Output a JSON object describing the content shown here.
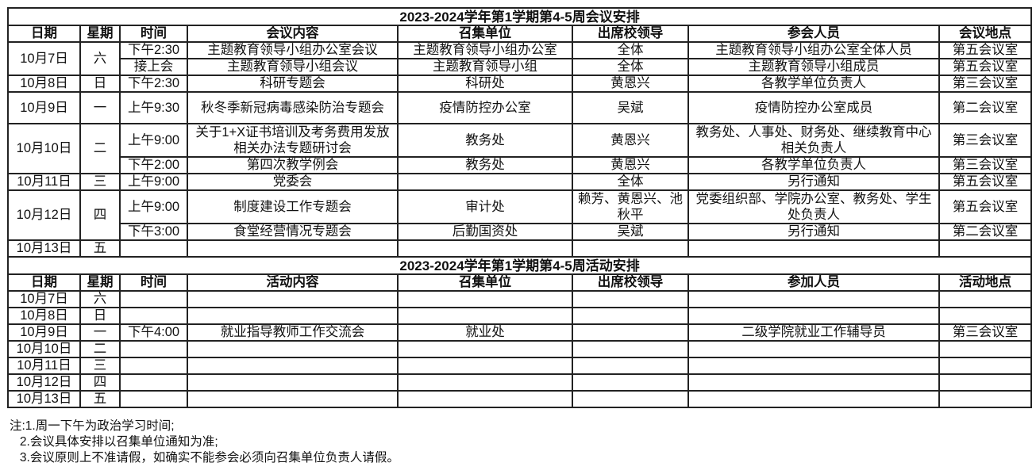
{
  "meetings": {
    "title": "2023-2024学年第1学期第4-5周会议安排",
    "headers": [
      "日期",
      "星期",
      "时间",
      "会议内容",
      "召集单位",
      "出席校领导",
      "参会人员",
      "会议地点"
    ],
    "days": [
      {
        "date": "10月7日",
        "weekday": "六",
        "sessions": [
          {
            "time": "下午2:30",
            "content": "主题教育领导小组办公室会议",
            "convener": "主题教育领导小组办公室",
            "leaders": "全体",
            "attendees": "主题教育领导小组办公室全体人员",
            "location": "第五会议室"
          },
          {
            "time": "接上会",
            "content": "主题教育领导小组会议",
            "convener": "主题教育领导小组",
            "leaders": "全体",
            "attendees": "主题教育领导小组成员",
            "location": "第五会议室"
          }
        ]
      },
      {
        "date": "10月8日",
        "weekday": "日",
        "sessions": [
          {
            "time": "下午2:30",
            "content": "科研专题会",
            "convener": "科研处",
            "leaders": "黄恩兴",
            "attendees": "各教学单位负责人",
            "location": "第三会议室"
          }
        ]
      },
      {
        "date": "10月9日",
        "weekday": "一",
        "tall": true,
        "sessions": [
          {
            "time": "上午9:30",
            "content": "秋冬季新冠病毒感染防治专题会",
            "convener": "疫情防控办公室",
            "leaders": "吴斌",
            "attendees": "疫情防控办公室成员",
            "location": "第二会议室",
            "tall": true
          }
        ]
      },
      {
        "date": "10月10日",
        "weekday": "二",
        "sessions": [
          {
            "time": "上午9:00",
            "content": "关于1+X证书培训及考务费用发放相关办法专题研讨会",
            "convener": "教务处",
            "leaders": "黄恩兴",
            "attendees": "教务处、人事处、财务处、继续教育中心相关负责人",
            "location": "第三会议室",
            "tall": true
          },
          {
            "time": "下午2:00",
            "content": "第四次教学例会",
            "convener": "教务处",
            "leaders": "黄恩兴",
            "attendees": "各教学单位负责人",
            "location": "第三会议室"
          }
        ]
      },
      {
        "date": "10月11日",
        "weekday": "三",
        "sessions": [
          {
            "time": "上午9:00",
            "content": "党委会",
            "convener": "",
            "leaders": "全体",
            "attendees": "另行通知",
            "location": "第五会议室"
          }
        ]
      },
      {
        "date": "10月12日",
        "weekday": "四",
        "sessions": [
          {
            "time": "上午9:00",
            "content": "制度建设工作专题会",
            "convener": "审计处",
            "leaders": "赖芳、黄恩兴、池秋平",
            "attendees": "党委组织部、学院办公室、教务处、学生处负责人",
            "location": "第五会议室",
            "tall": true
          },
          {
            "time": "下午3:00",
            "content": "食堂经营情况专题会",
            "convener": "后勤国资处",
            "leaders": "吴斌",
            "attendees": "另行通知",
            "location": "第二会议室"
          }
        ]
      },
      {
        "date": "10月13日",
        "weekday": "五",
        "sessions": [
          {
            "time": "",
            "content": "",
            "convener": "",
            "leaders": "",
            "attendees": "",
            "location": ""
          }
        ]
      }
    ]
  },
  "activities": {
    "title": "2023-2024学年第1学期第4-5周活动安排",
    "headers": [
      "日期",
      "星期",
      "时间",
      "活动内容",
      "召集单位",
      "出席校领导",
      "参加人员",
      "活动地点"
    ],
    "days": [
      {
        "date": "10月7日",
        "weekday": "六",
        "sessions": [
          {
            "time": "",
            "content": "",
            "convener": "",
            "leaders": "",
            "attendees": "",
            "location": ""
          }
        ]
      },
      {
        "date": "10月8日",
        "weekday": "日",
        "sessions": [
          {
            "time": "",
            "content": "",
            "convener": "",
            "leaders": "",
            "attendees": "",
            "location": ""
          }
        ]
      },
      {
        "date": "10月9日",
        "weekday": "一",
        "sessions": [
          {
            "time": "下午4:00",
            "content": "就业指导教师工作交流会",
            "convener": "就业处",
            "leaders": "",
            "attendees": "二级学院就业工作辅导员",
            "location": "第三会议室"
          }
        ]
      },
      {
        "date": "10月10日",
        "weekday": "二",
        "sessions": [
          {
            "time": "",
            "content": "",
            "convener": "",
            "leaders": "",
            "attendees": "",
            "location": ""
          }
        ]
      },
      {
        "date": "10月11日",
        "weekday": "三",
        "sessions": [
          {
            "time": "",
            "content": "",
            "convener": "",
            "leaders": "",
            "attendees": "",
            "location": ""
          }
        ]
      },
      {
        "date": "10月12日",
        "weekday": "四",
        "sessions": [
          {
            "time": "",
            "content": "",
            "convener": "",
            "leaders": "",
            "attendees": "",
            "location": ""
          }
        ]
      },
      {
        "date": "10月13日",
        "weekday": "五",
        "sessions": [
          {
            "time": "",
            "content": "",
            "convener": "",
            "leaders": "",
            "attendees": "",
            "location": ""
          }
        ]
      }
    ]
  },
  "notes": [
    "注:1.周一下午为政治学习时间;",
    "   2.会议具体安排以召集单位通知为准;",
    "   3.会议原则上不准请假，如确实不能参会必须向召集单位负责人请假。"
  ]
}
